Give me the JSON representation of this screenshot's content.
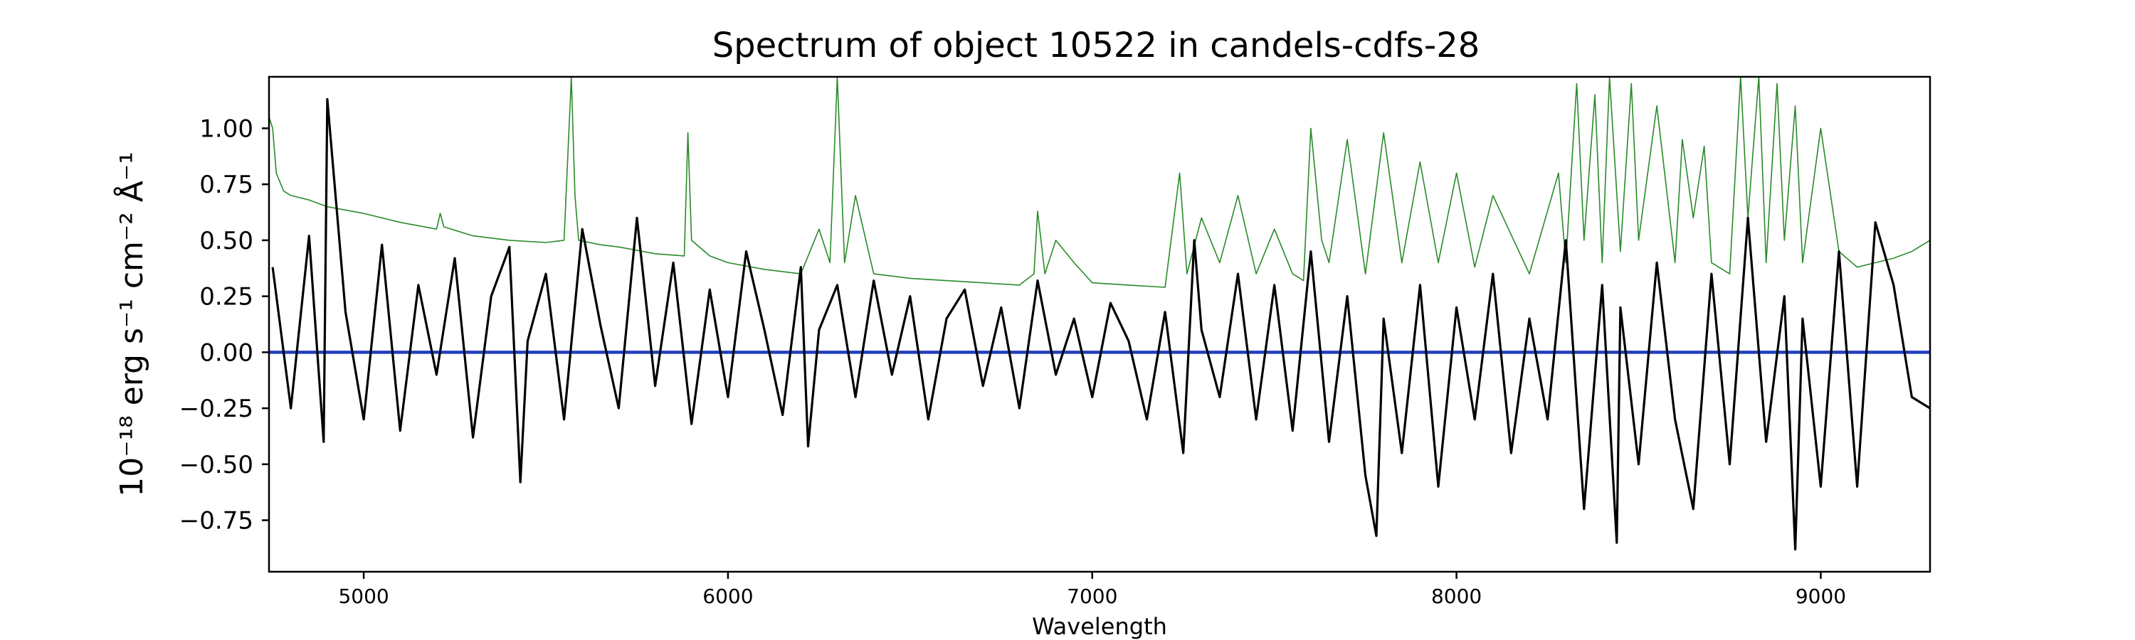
{
  "chart_data": {
    "type": "line",
    "title": "Spectrum of object 10522 in candels-cdfs-28",
    "xlabel": "Wavelength",
    "ylabel": "10⁻¹⁸ erg s⁻¹ cm⁻² Å⁻¹",
    "xlim": [
      4740,
      9300
    ],
    "ylim": [
      -0.98,
      1.23
    ],
    "x_ticks": [
      5000,
      6000,
      7000,
      8000,
      9000
    ],
    "y_ticks": [
      -0.75,
      -0.5,
      -0.25,
      0.0,
      0.25,
      0.5,
      0.75,
      1.0
    ],
    "y_tick_labels": [
      "−0.75",
      "−0.50",
      "−0.25",
      "0.00",
      "0.25",
      "0.50",
      "0.75",
      "1.00"
    ],
    "grid": false,
    "series": [
      {
        "role": "flux",
        "color": "#000000",
        "x": [
          4750,
          4800,
          4850,
          4890,
          4900,
          4950,
          5000,
          5050,
          5100,
          5150,
          5200,
          5250,
          5300,
          5350,
          5400,
          5430,
          5450,
          5500,
          5550,
          5600,
          5650,
          5700,
          5750,
          5800,
          5850,
          5900,
          5950,
          6000,
          6050,
          6100,
          6150,
          6200,
          6220,
          6250,
          6300,
          6350,
          6400,
          6450,
          6500,
          6550,
          6600,
          6650,
          6700,
          6750,
          6800,
          6850,
          6900,
          6950,
          7000,
          7050,
          7100,
          7150,
          7200,
          7250,
          7280,
          7300,
          7350,
          7400,
          7450,
          7500,
          7550,
          7600,
          7650,
          7700,
          7750,
          7780,
          7800,
          7850,
          7900,
          7950,
          8000,
          8050,
          8100,
          8150,
          8200,
          8250,
          8300,
          8350,
          8400,
          8440,
          8450,
          8500,
          8550,
          8600,
          8650,
          8700,
          8750,
          8800,
          8850,
          8900,
          8930,
          8950,
          9000,
          9050,
          9100,
          9150,
          9200,
          9250,
          9300
        ],
        "y": [
          0.38,
          -0.25,
          0.52,
          -0.4,
          1.13,
          0.18,
          -0.3,
          0.48,
          -0.35,
          0.3,
          -0.1,
          0.42,
          -0.38,
          0.25,
          0.47,
          -0.58,
          0.05,
          0.35,
          -0.3,
          0.55,
          0.12,
          -0.25,
          0.6,
          -0.15,
          0.4,
          -0.32,
          0.28,
          -0.2,
          0.45,
          0.1,
          -0.28,
          0.38,
          -0.42,
          0.1,
          0.3,
          -0.2,
          0.32,
          -0.1,
          0.25,
          -0.3,
          0.15,
          0.28,
          -0.15,
          0.2,
          -0.25,
          0.32,
          -0.1,
          0.15,
          -0.2,
          0.22,
          0.05,
          -0.3,
          0.18,
          -0.45,
          0.5,
          0.1,
          -0.2,
          0.35,
          -0.3,
          0.3,
          -0.35,
          0.45,
          -0.4,
          0.25,
          -0.55,
          -0.82,
          0.15,
          -0.45,
          0.3,
          -0.6,
          0.2,
          -0.3,
          0.35,
          -0.45,
          0.15,
          -0.3,
          0.5,
          -0.7,
          0.3,
          -0.85,
          0.2,
          -0.5,
          0.4,
          -0.3,
          -0.7,
          0.35,
          -0.5,
          0.6,
          -0.4,
          0.25,
          -0.88,
          0.15,
          -0.6,
          0.45,
          -0.6,
          0.58,
          0.3,
          -0.2,
          -0.25
        ]
      },
      {
        "role": "uncertainty",
        "color": "#2a8a2a",
        "x": [
          4740,
          4750,
          4760,
          4780,
          4800,
          4850,
          4900,
          5000,
          5100,
          5200,
          5210,
          5220,
          5300,
          5400,
          5500,
          5550,
          5570,
          5580,
          5590,
          5650,
          5700,
          5800,
          5880,
          5890,
          5900,
          5950,
          6000,
          6100,
          6200,
          6250,
          6280,
          6300,
          6320,
          6350,
          6400,
          6500,
          6600,
          6700,
          6800,
          6840,
          6850,
          6870,
          6900,
          6950,
          7000,
          7100,
          7200,
          7240,
          7260,
          7300,
          7350,
          7400,
          7450,
          7500,
          7550,
          7580,
          7600,
          7630,
          7650,
          7700,
          7750,
          7800,
          7850,
          7900,
          7950,
          8000,
          8050,
          8100,
          8200,
          8280,
          8300,
          8330,
          8350,
          8380,
          8400,
          8420,
          8450,
          8480,
          8500,
          8550,
          8600,
          8620,
          8650,
          8680,
          8700,
          8750,
          8780,
          8800,
          8830,
          8850,
          8880,
          8900,
          8930,
          8950,
          9000,
          9050,
          9100,
          9150,
          9200,
          9250,
          9300
        ],
        "y": [
          1.05,
          1.0,
          0.8,
          0.72,
          0.7,
          0.68,
          0.65,
          0.62,
          0.58,
          0.55,
          0.62,
          0.56,
          0.52,
          0.5,
          0.49,
          0.5,
          1.23,
          0.7,
          0.5,
          0.48,
          0.47,
          0.44,
          0.43,
          0.98,
          0.5,
          0.43,
          0.4,
          0.37,
          0.35,
          0.55,
          0.4,
          1.23,
          0.4,
          0.7,
          0.35,
          0.33,
          0.32,
          0.31,
          0.3,
          0.35,
          0.63,
          0.35,
          0.5,
          0.4,
          0.31,
          0.3,
          0.29,
          0.8,
          0.35,
          0.6,
          0.4,
          0.7,
          0.35,
          0.55,
          0.35,
          0.32,
          1.0,
          0.5,
          0.4,
          0.95,
          0.35,
          0.98,
          0.4,
          0.85,
          0.4,
          0.8,
          0.38,
          0.7,
          0.35,
          0.8,
          0.4,
          1.2,
          0.5,
          1.15,
          0.4,
          1.23,
          0.45,
          1.2,
          0.5,
          1.1,
          0.4,
          0.95,
          0.6,
          0.92,
          0.4,
          0.35,
          1.23,
          0.6,
          1.23,
          0.4,
          1.2,
          0.5,
          1.1,
          0.4,
          1.0,
          0.45,
          0.38,
          0.4,
          0.42,
          0.45,
          0.5
        ]
      },
      {
        "role": "zero",
        "color": "#1f3fbf",
        "x": [
          4740,
          9300
        ],
        "y": [
          0.0,
          0.0
        ]
      }
    ]
  }
}
